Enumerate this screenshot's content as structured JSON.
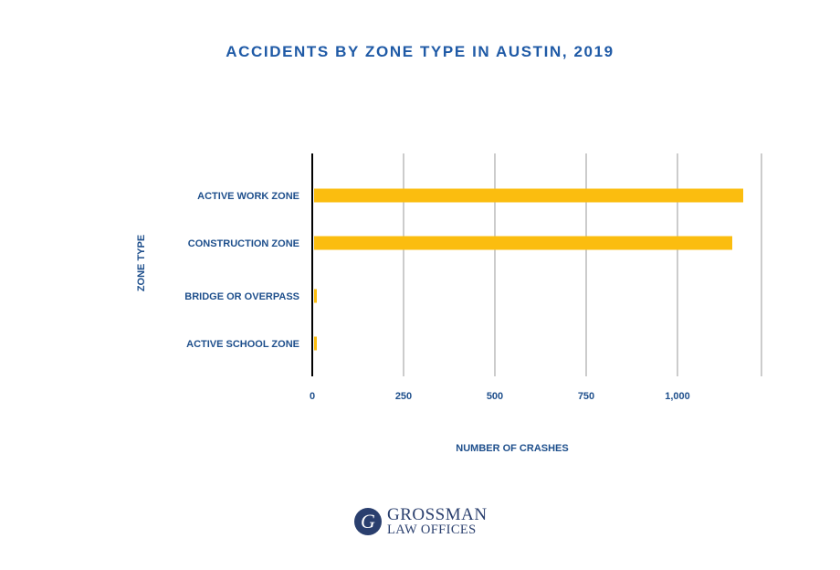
{
  "colors": {
    "title": "#1f5aa6",
    "label": "#1e4f8c",
    "bar": "#fbbd0f",
    "grid": "#9a9a9a",
    "axis": "#000000",
    "logo": "#2a3f6e"
  },
  "chart_data": {
    "type": "bar",
    "orientation": "horizontal",
    "title": "ACCIDENTS BY ZONE TYPE IN AUSTIN, 2019",
    "xlabel": "NUMBER OF CRASHES",
    "ylabel": "ZONE TYPE",
    "categories": [
      "ACTIVE WORK ZONE",
      "CONSTRUCTION ZONE",
      "BRIDGE OR OVERPASS",
      "ACTIVE SCHOOL ZONE"
    ],
    "values": [
      1180,
      1150,
      12,
      4
    ],
    "xlim": [
      0,
      1230
    ],
    "xticks": [
      0,
      250,
      500,
      750,
      1000
    ],
    "xtick_labels": [
      "0",
      "250",
      "500",
      "750",
      "1,000"
    ],
    "grid_x": [
      250,
      500,
      750,
      1000,
      1230
    ],
    "grid": true,
    "legend": "none"
  },
  "logo": {
    "initial": "G",
    "line1": "GROSSMAN",
    "line2": "LAW OFFICES"
  }
}
